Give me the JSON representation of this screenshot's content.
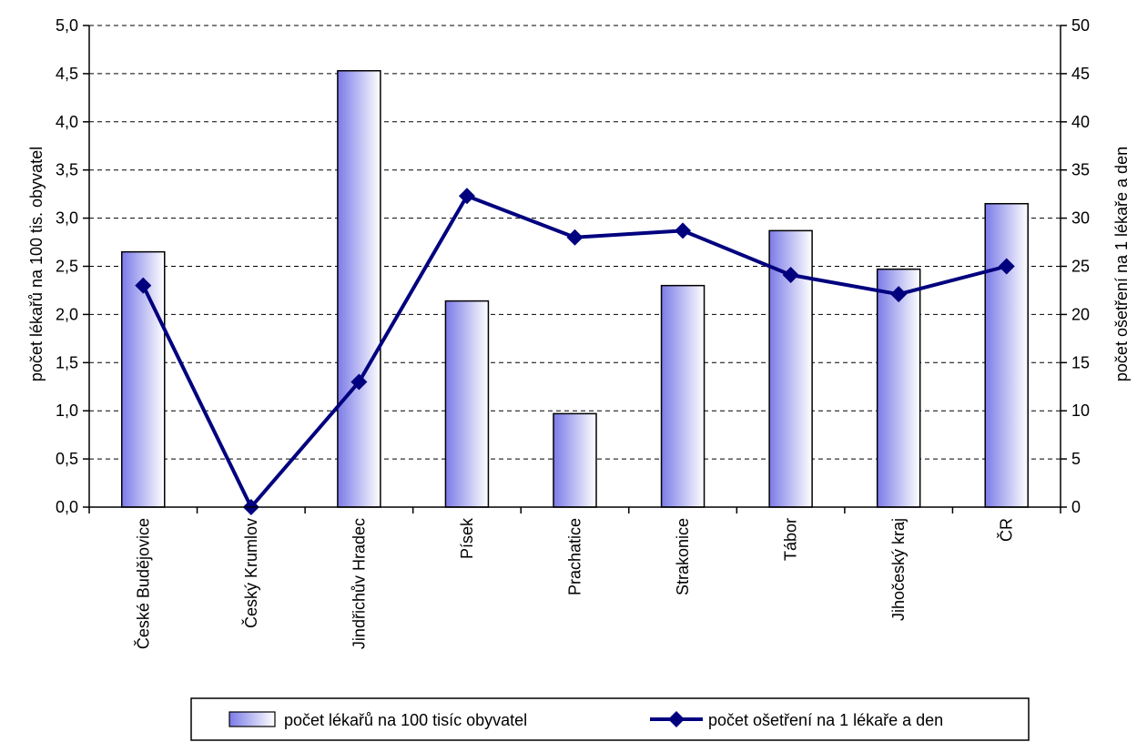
{
  "chart_data": {
    "type": "bar",
    "categories": [
      "České Budějovice",
      "Český Krumlov",
      "Jindřichův Hradec",
      "Písek",
      "Prachatice",
      "Strakonice",
      "Tábor",
      "Jihočeský kraj",
      "ČR"
    ],
    "series": [
      {
        "name": "počet lékařů na 100 tisíc obyvatel",
        "type": "bar",
        "axis": "left",
        "values": [
          2.65,
          0.0,
          4.53,
          2.14,
          0.97,
          2.3,
          2.87,
          2.47,
          3.15
        ]
      },
      {
        "name": "počet ošetření na 1 lékaře a den",
        "type": "line",
        "axis": "right",
        "marker": "diamond",
        "values": [
          23,
          0,
          13,
          32.3,
          28,
          28.7,
          24.1,
          22.1,
          25
        ]
      }
    ],
    "ylabel_left": "počet lékařů na 100 tis. obyvatel",
    "ylabel_right": "počet ošetření na 1 lékaře a den",
    "ylim_left": [
      0,
      5
    ],
    "ylim_right": [
      0,
      50
    ],
    "yticks_left": [
      "0,0",
      "0,5",
      "1,0",
      "1,5",
      "2,0",
      "2,5",
      "3,0",
      "3,5",
      "4,0",
      "4,5",
      "5,0"
    ],
    "yticks_right": [
      "0",
      "5",
      "10",
      "15",
      "20",
      "25",
      "30",
      "35",
      "40",
      "45",
      "50"
    ],
    "grid": "horizontal dashed",
    "legend_position": "bottom",
    "colors": {
      "bar_light": "#ffffff",
      "bar_dark": "#7b7be8",
      "line": "#00007f",
      "grid": "#000000"
    }
  }
}
